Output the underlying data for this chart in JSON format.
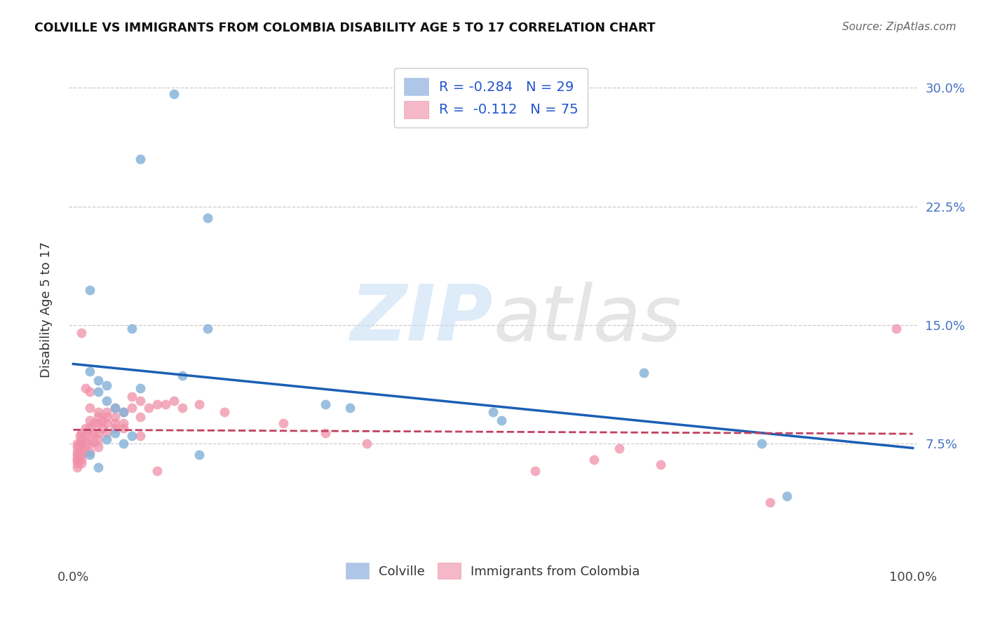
{
  "title": "COLVILLE VS IMMIGRANTS FROM COLOMBIA DISABILITY AGE 5 TO 17 CORRELATION CHART",
  "source": "Source: ZipAtlas.com",
  "ylabel": "Disability Age 5 to 17",
  "colville_x": [
    0.12,
    0.08,
    0.16,
    0.02,
    0.16,
    0.02,
    0.03,
    0.04,
    0.03,
    0.04,
    0.05,
    0.06,
    0.07,
    0.3,
    0.33,
    0.5,
    0.51,
    0.68,
    0.82,
    0.85,
    0.15,
    0.03,
    0.13,
    0.04,
    0.05,
    0.02,
    0.06,
    0.07,
    0.08
  ],
  "colville_y": [
    0.296,
    0.255,
    0.218,
    0.172,
    0.148,
    0.121,
    0.115,
    0.112,
    0.108,
    0.102,
    0.098,
    0.095,
    0.148,
    0.1,
    0.098,
    0.095,
    0.09,
    0.12,
    0.075,
    0.042,
    0.068,
    0.06,
    0.118,
    0.078,
    0.082,
    0.068,
    0.075,
    0.08,
    0.11
  ],
  "colombia_x": [
    0.005,
    0.005,
    0.005,
    0.005,
    0.005,
    0.005,
    0.005,
    0.005,
    0.008,
    0.008,
    0.008,
    0.01,
    0.01,
    0.01,
    0.01,
    0.01,
    0.01,
    0.01,
    0.015,
    0.015,
    0.015,
    0.015,
    0.02,
    0.02,
    0.02,
    0.02,
    0.02,
    0.025,
    0.025,
    0.025,
    0.03,
    0.03,
    0.03,
    0.03,
    0.03,
    0.035,
    0.035,
    0.04,
    0.04,
    0.04,
    0.05,
    0.05,
    0.05,
    0.06,
    0.06,
    0.07,
    0.07,
    0.08,
    0.08,
    0.09,
    0.1,
    0.11,
    0.12,
    0.13,
    0.15,
    0.18,
    0.25,
    0.3,
    0.35,
    0.55,
    0.62,
    0.65,
    0.7,
    0.83,
    0.98,
    0.01,
    0.015,
    0.02,
    0.02,
    0.03,
    0.04,
    0.05,
    0.06,
    0.08,
    0.1
  ],
  "colombia_y": [
    0.075,
    0.073,
    0.07,
    0.068,
    0.066,
    0.065,
    0.063,
    0.06,
    0.08,
    0.075,
    0.07,
    0.082,
    0.078,
    0.075,
    0.072,
    0.068,
    0.065,
    0.063,
    0.085,
    0.08,
    0.075,
    0.07,
    0.09,
    0.085,
    0.08,
    0.075,
    0.07,
    0.088,
    0.082,
    0.076,
    0.092,
    0.088,
    0.082,
    0.078,
    0.073,
    0.09,
    0.085,
    0.095,
    0.088,
    0.082,
    0.098,
    0.092,
    0.085,
    0.095,
    0.088,
    0.105,
    0.098,
    0.102,
    0.092,
    0.098,
    0.1,
    0.1,
    0.102,
    0.098,
    0.1,
    0.095,
    0.088,
    0.082,
    0.075,
    0.058,
    0.065,
    0.072,
    0.062,
    0.038,
    0.148,
    0.145,
    0.11,
    0.108,
    0.098,
    0.095,
    0.092,
    0.088,
    0.085,
    0.08,
    0.058
  ],
  "colville_color": "#8ab4d9",
  "colombia_color": "#f090a8",
  "colville_line_color": "#1a5fb4",
  "colombia_line_color": "#c04060",
  "background_color": "#ffffff",
  "grid_color": "#cccccc",
  "ylim": [
    0.0,
    0.32
  ],
  "xlim": [
    -0.005,
    1.005
  ]
}
